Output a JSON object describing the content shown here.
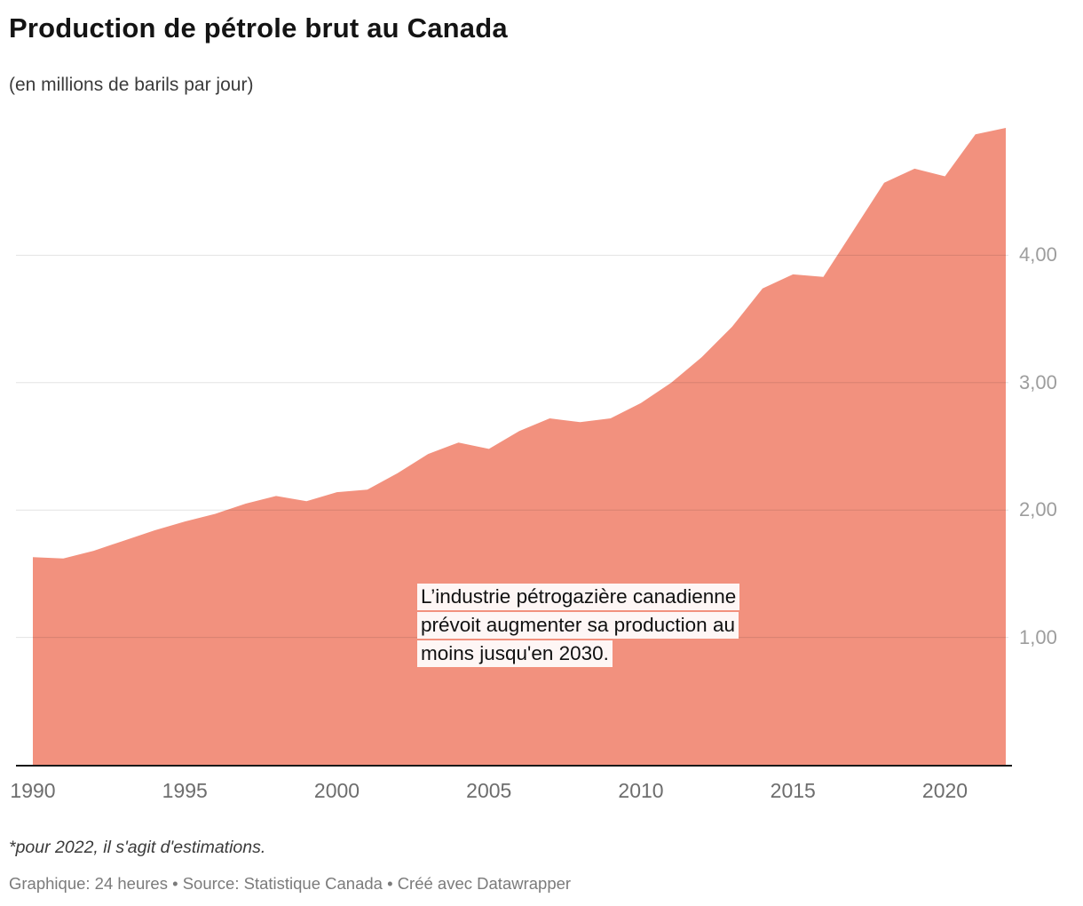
{
  "header": {
    "title": "Production de pétrole brut au Canada",
    "subtitle": "(en millions de barils par jour)"
  },
  "chart_data": {
    "type": "area",
    "title": "Production de pétrole brut au Canada",
    "subtitle": "(en millions de barils par jour)",
    "series_name": "Production de pétrole brut (millions de barils par jour)",
    "x": [
      1990,
      1991,
      1992,
      1993,
      1994,
      1995,
      1996,
      1997,
      1998,
      1999,
      2000,
      2001,
      2002,
      2003,
      2004,
      2005,
      2006,
      2007,
      2008,
      2009,
      2010,
      2011,
      2012,
      2013,
      2014,
      2015,
      2016,
      2017,
      2018,
      2019,
      2020,
      2021,
      2022
    ],
    "values": [
      1.63,
      1.62,
      1.68,
      1.76,
      1.84,
      1.91,
      1.97,
      2.05,
      2.11,
      2.07,
      2.14,
      2.16,
      2.29,
      2.44,
      2.53,
      2.48,
      2.62,
      2.72,
      2.69,
      2.72,
      2.84,
      3.0,
      3.2,
      3.44,
      3.74,
      3.85,
      3.83,
      4.2,
      4.57,
      4.68,
      4.62,
      4.95,
      5.0
    ],
    "xlim": [
      1990,
      2022
    ],
    "ylim": [
      0,
      5.0
    ],
    "xticks": [
      1990,
      1995,
      2000,
      2005,
      2010,
      2015,
      2020
    ],
    "yticks": [
      1,
      2,
      3,
      4
    ],
    "ytick_labels": [
      "1,00",
      "2,00",
      "3,00",
      "4,00"
    ],
    "grid": "horizontal",
    "legend": "none",
    "area_color": "#f2917e",
    "gridline_color": "#dddddd",
    "axis_color": "#191919",
    "annotation_lines": [
      "L’industrie pétrogazière canadienne",
      "prévoit augmenter sa production au",
      "moins jusqu'en 2030."
    ]
  },
  "footer": {
    "footnote": "*pour 2022, il s'agit d'estimations.",
    "byline": "Graphique: 24 heures • Source: Statistique Canada • Créé avec Datawrapper"
  }
}
